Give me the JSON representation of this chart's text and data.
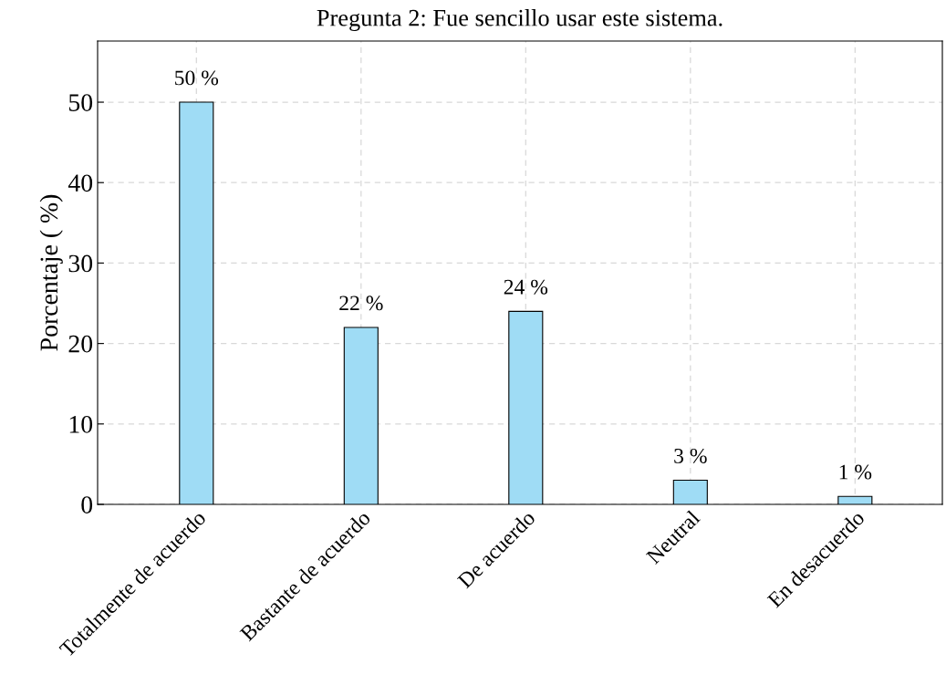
{
  "chart_data": {
    "type": "bar",
    "title": "Pregunta 2: Fue sencillo usar este sistema.",
    "ylabel": "Porcentaje ( %)",
    "categories": [
      "Totalmente de acuerdo",
      "Bastante de acuerdo",
      "De acuerdo",
      "Neutral",
      "En desacuerdo"
    ],
    "values": [
      50,
      22,
      24,
      3,
      1
    ],
    "value_labels": [
      "50 %",
      "22 %",
      "24 %",
      "3 %",
      "1 %"
    ],
    "color": "#9fdcf5",
    "ylim": [
      0,
      57.6
    ],
    "yticks": [
      0,
      10,
      20,
      30,
      40,
      50
    ],
    "grid": true,
    "legend": false
  }
}
